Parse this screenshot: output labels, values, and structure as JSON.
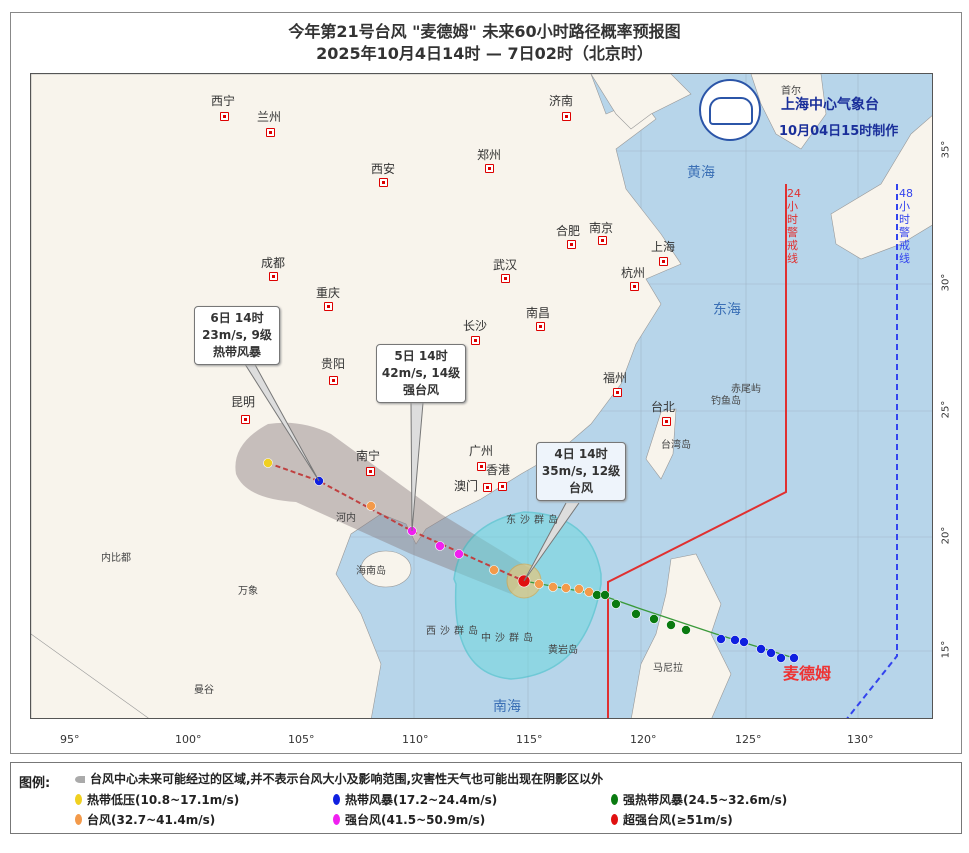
{
  "title": "今年第21号台风 \"麦德姆\" 未来60小时路径概率预报图",
  "subtitle": "2025年10月4日14时 — 7日02时（北京时）",
  "agency": {
    "name": "上海中心气象台",
    "issued": "10月04日15时制作"
  },
  "typhoon_name": "麦德姆",
  "cities": [
    "西宁",
    "兰州",
    "济南",
    "郑州",
    "西安",
    "合肥",
    "南京",
    "上海",
    "杭州",
    "成都",
    "重庆",
    "武汉",
    "长沙",
    "南昌",
    "贵阳",
    "福州",
    "昆明",
    "南宁",
    "广州",
    "香港",
    "澳门",
    "台北"
  ],
  "foreign_cities": [
    "内比都",
    "万象",
    "河内",
    "曼谷",
    "马尼拉",
    "首尔"
  ],
  "islands": [
    "海南岛",
    "台湾岛",
    "东沙群岛",
    "西沙群岛",
    "中沙群岛",
    "黄岩岛",
    "钓鱼岛",
    "赤尾屿"
  ],
  "seas": [
    "黄海",
    "东海",
    "南海"
  ],
  "warning_lines": {
    "h24": "24小时警戒线",
    "h48": "48小时警戒线",
    "h24_color": "#e03030",
    "h48_color": "#3344ee"
  },
  "callouts": [
    {
      "time": "6日 14时",
      "wind": "23m/s, 9级",
      "category": "热带风暴"
    },
    {
      "time": "5日 14时",
      "wind": "42m/s, 14级",
      "category": "强台风"
    },
    {
      "time": "4日 14时",
      "wind": "35m/s, 12级",
      "category": "台风"
    }
  ],
  "longitude_ticks": [
    "95°",
    "100°",
    "105°",
    "110°",
    "115°",
    "120°",
    "125°",
    "130°"
  ],
  "latitude_ticks": [
    "35°",
    "30°",
    "25°",
    "20°",
    "15°"
  ],
  "legend": {
    "label": "图例:",
    "cone": "台风中心未来可能经过的区域,并不表示台风大小及影响范围,灾害性天气也可能出现在阴影区以外",
    "items": [
      {
        "label": "热带低压(10.8~17.1m/s)",
        "color": "#f0d020"
      },
      {
        "label": "热带风暴(17.2~24.4m/s)",
        "color": "#1020e0"
      },
      {
        "label": "强热带风暴(24.5~32.6m/s)",
        "color": "#0a7a10"
      },
      {
        "label": "台风(32.7~41.4m/s)",
        "color": "#f39a4a"
      },
      {
        "label": "强台风(41.5~50.9m/s)",
        "color": "#f020f0"
      },
      {
        "label": "超强台风(≥51m/s)",
        "color": "#e01010"
      }
    ]
  }
}
